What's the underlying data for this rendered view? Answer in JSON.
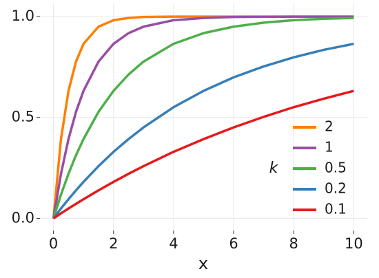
{
  "chart_data": {
    "type": "line",
    "x_label": "x",
    "legend_title": "k",
    "legend_position": "inside-bottom-right",
    "grid": true,
    "x": [
      0,
      0.25,
      0.5,
      0.75,
      1,
      1.5,
      2,
      2.5,
      3,
      4,
      5,
      6,
      7,
      8,
      9,
      10
    ],
    "series": [
      {
        "name": "2",
        "color": "#ff7f00",
        "values": [
          0,
          0.393,
          0.632,
          0.777,
          0.865,
          0.95,
          0.982,
          0.993,
          0.998,
          1.0,
          1.0,
          1.0,
          1.0,
          1.0,
          1.0,
          1.0
        ]
      },
      {
        "name": "1",
        "color": "#984ea3",
        "values": [
          0,
          0.221,
          0.393,
          0.528,
          0.632,
          0.777,
          0.865,
          0.918,
          0.95,
          0.982,
          0.993,
          0.998,
          0.999,
          1.0,
          1.0,
          1.0
        ]
      },
      {
        "name": "0.5",
        "color": "#4daf4a",
        "values": [
          0,
          0.118,
          0.221,
          0.313,
          0.393,
          0.528,
          0.632,
          0.713,
          0.777,
          0.865,
          0.918,
          0.95,
          0.97,
          0.982,
          0.989,
          0.993
        ]
      },
      {
        "name": "0.2",
        "color": "#377eb8",
        "values": [
          0,
          0.049,
          0.095,
          0.139,
          0.181,
          0.259,
          0.33,
          0.393,
          0.451,
          0.551,
          0.632,
          0.699,
          0.753,
          0.798,
          0.835,
          0.865
        ]
      },
      {
        "name": "0.1",
        "color": "#e41a1c",
        "values": [
          0,
          0.025,
          0.049,
          0.072,
          0.095,
          0.139,
          0.181,
          0.221,
          0.259,
          0.33,
          0.393,
          0.451,
          0.503,
          0.551,
          0.593,
          0.632
        ]
      }
    ],
    "xlim": [
      -0.45,
      10.45
    ],
    "xticks": [
      0,
      2,
      4,
      6,
      8,
      10
    ],
    "ylim": [
      -0.06,
      1.065
    ],
    "yticks": [
      {
        "value": 0,
        "label": "0.0"
      },
      {
        "value": 0.5,
        "label": "0.5"
      },
      {
        "value": 1,
        "label": "1.0"
      }
    ]
  }
}
